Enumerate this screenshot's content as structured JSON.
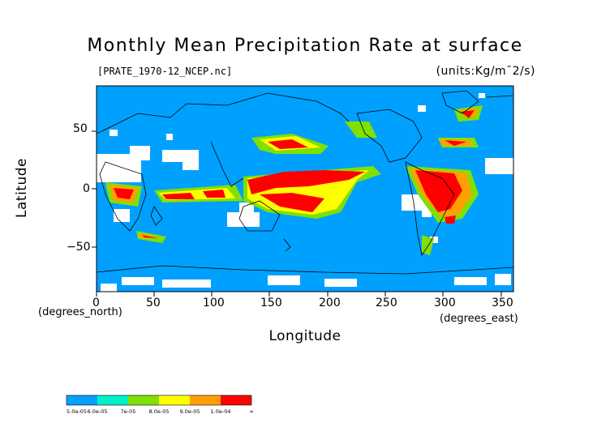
{
  "title": "Monthly Mean Precipitation Rate at surface",
  "subtitle_left": "[PRATE_1970-12_NCEP.nc]",
  "subtitle_right": "(units:Kg/m¯2/s)",
  "x_axis": {
    "label": "Longitude",
    "units": "(degrees_east)",
    "ticks": [
      "0",
      "50",
      "100",
      "150",
      "200",
      "250",
      "300",
      "350"
    ]
  },
  "y_axis": {
    "label": "Latitude",
    "units": "(degrees_north)",
    "ticks": [
      "50",
      "0",
      "−50"
    ]
  },
  "colorbar": {
    "labels": [
      "5.0e-05",
      "6.0e-05",
      "7e-05",
      "8.0e-05",
      "9.0e-05",
      "1.0e-04",
      "∞"
    ],
    "colors": [
      "#00a0ff",
      "#00f0c8",
      "#80e000",
      "#ffff00",
      "#ffa000",
      "#ff0000"
    ]
  },
  "colors": {
    "ocean_background": "#00a0ff",
    "missing": "#ffffff"
  }
}
